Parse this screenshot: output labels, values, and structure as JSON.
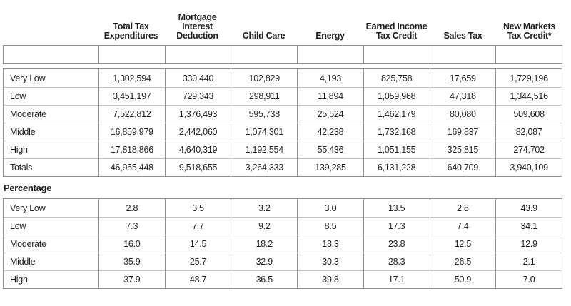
{
  "text_color": "#231f20",
  "frame_border_color": "#8e8e8e",
  "row_divider_color": "#c4c4c4",
  "header": {
    "columns": [
      {
        "lines": [
          "Total Tax",
          "Expenditures"
        ]
      },
      {
        "lines": [
          "Mortgage",
          "Interest",
          "Deduction"
        ]
      },
      {
        "lines": [
          "Child Care"
        ]
      },
      {
        "lines": [
          "Energy"
        ]
      },
      {
        "lines": [
          "Earned Income",
          "Tax Credit"
        ]
      },
      {
        "lines": [
          "Sales Tax"
        ]
      },
      {
        "lines": [
          "New Markets",
          "Tax Credit*"
        ]
      }
    ]
  },
  "amounts_section": {
    "rows": [
      {
        "label": "Very Low",
        "values": [
          "1,302,594",
          "330,440",
          "102,829",
          "4,193",
          "825,758",
          "17,659",
          "1,729,196"
        ]
      },
      {
        "label": "Low",
        "values": [
          "3,451,197",
          "729,343",
          "298,911",
          "11,894",
          "1,059,968",
          "47,318",
          "1,344,516"
        ]
      },
      {
        "label": "Moderate",
        "values": [
          "7,522,812",
          "1,376,493",
          "595,738",
          "25,524",
          "1,462,179",
          "80,080",
          "509,608"
        ]
      },
      {
        "label": "Middle",
        "values": [
          "16,859,979",
          "2,442,060",
          "1,074,301",
          "42,238",
          "1,732,168",
          "169,837",
          "82,087"
        ]
      },
      {
        "label": "High",
        "values": [
          "17,818,866",
          "4,640,319",
          "1,192,554",
          "55,436",
          "1,051,155",
          "325,815",
          "274,702"
        ]
      },
      {
        "label": "Totals",
        "values": [
          "46,955,448",
          "9,518,655",
          "3,264,333",
          "139,285",
          "6,131,228",
          "640,709",
          "3,940,109"
        ]
      }
    ]
  },
  "percentage_section": {
    "label": "Percentage",
    "rows": [
      {
        "label": "Very Low",
        "values": [
          "2.8",
          "3.5",
          "3.2",
          "3.0",
          "13.5",
          "2.8",
          "43.9"
        ]
      },
      {
        "label": "Low",
        "values": [
          "7.3",
          "7.7",
          "9.2",
          "8.5",
          "17.3",
          "7.4",
          "34.1"
        ]
      },
      {
        "label": "Moderate",
        "values": [
          "16.0",
          "14.5",
          "18.2",
          "18.3",
          "23.8",
          "12.5",
          "12.9"
        ]
      },
      {
        "label": "Middle",
        "values": [
          "35.9",
          "25.7",
          "32.9",
          "30.3",
          "28.3",
          "26.5",
          "2.1"
        ]
      },
      {
        "label": "High",
        "values": [
          "37.9",
          "48.7",
          "36.5",
          "39.8",
          "17.1",
          "50.9",
          "7.0"
        ]
      }
    ]
  }
}
